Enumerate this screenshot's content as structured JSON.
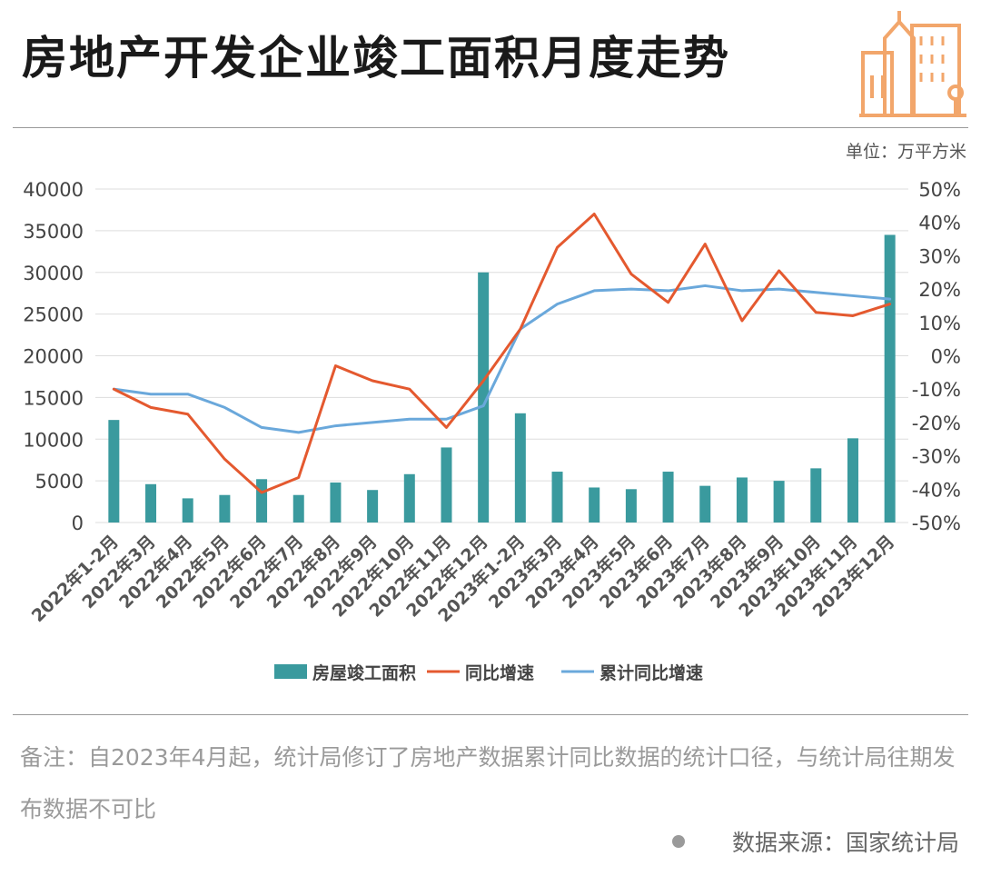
{
  "title": "房地产开发企业竣工面积月度走势",
  "unit_label": "单位：万平方米",
  "logo_icon": "city-buildings-icon",
  "note": "备注：自2023年4月起，统计局修订了房地产数据累计同比数据的统计口径，与统计局往期发布数据不可比",
  "source": "数据来源：国家统计局",
  "colors": {
    "bar": "#3a9a9e",
    "yoy_line": "#e4592f",
    "cumulative_line": "#6aa8db",
    "accent": "#f2a66b"
  },
  "chart_data": {
    "type": "bar",
    "categories": [
      "2022年1-2月",
      "2022年3月",
      "2022年4月",
      "2022年5月",
      "2022年6月",
      "2022年7月",
      "2022年8月",
      "2022年9月",
      "2022年10月",
      "2022年11月",
      "2022年12月",
      "2023年1-2月",
      "2023年3月",
      "2023年4月",
      "2023年5月",
      "2023年6月",
      "2023年7月",
      "2023年8月",
      "2023年9月",
      "2023年10月",
      "2023年11月",
      "2023年12月"
    ],
    "y_left": {
      "ticks": [
        "0",
        "5000",
        "10000",
        "15000",
        "20000",
        "25000",
        "30000",
        "35000",
        "40000"
      ],
      "lim": [
        0,
        40000
      ]
    },
    "y_right": {
      "ticks": [
        "-50%",
        "-40%",
        "-30%",
        "-20%",
        "-10%",
        "0%",
        "10%",
        "20%",
        "30%",
        "40%",
        "50%"
      ],
      "lim": [
        -50,
        50
      ]
    },
    "grid": true,
    "legend_position": "bottom",
    "series": [
      {
        "name": "房屋竣工面积",
        "type": "bar",
        "axis": "left",
        "values": [
          12300,
          4600,
          2900,
          3300,
          5200,
          3300,
          4800,
          3900,
          5800,
          9000,
          30000,
          13100,
          6100,
          4200,
          4000,
          6100,
          4400,
          5400,
          5000,
          6500,
          10100,
          34500
        ]
      },
      {
        "name": "同比增速",
        "type": "line",
        "axis": "right",
        "values": [
          -10,
          -15.5,
          -17.5,
          -31,
          -41,
          -36.5,
          -3,
          -7.5,
          -10,
          -21.5,
          -7.5,
          8,
          32.5,
          42.5,
          24.5,
          16,
          33.5,
          10.5,
          25.5,
          13,
          12,
          15.5
        ]
      },
      {
        "name": "累计同比增速",
        "type": "line",
        "axis": "right",
        "values": [
          -10,
          -11.5,
          -11.5,
          -15.5,
          -21.5,
          -23,
          -21,
          -20,
          -19,
          -19,
          -15,
          8,
          15.5,
          19.5,
          20,
          19.5,
          21,
          19.5,
          20,
          19,
          18,
          17
        ]
      }
    ]
  }
}
